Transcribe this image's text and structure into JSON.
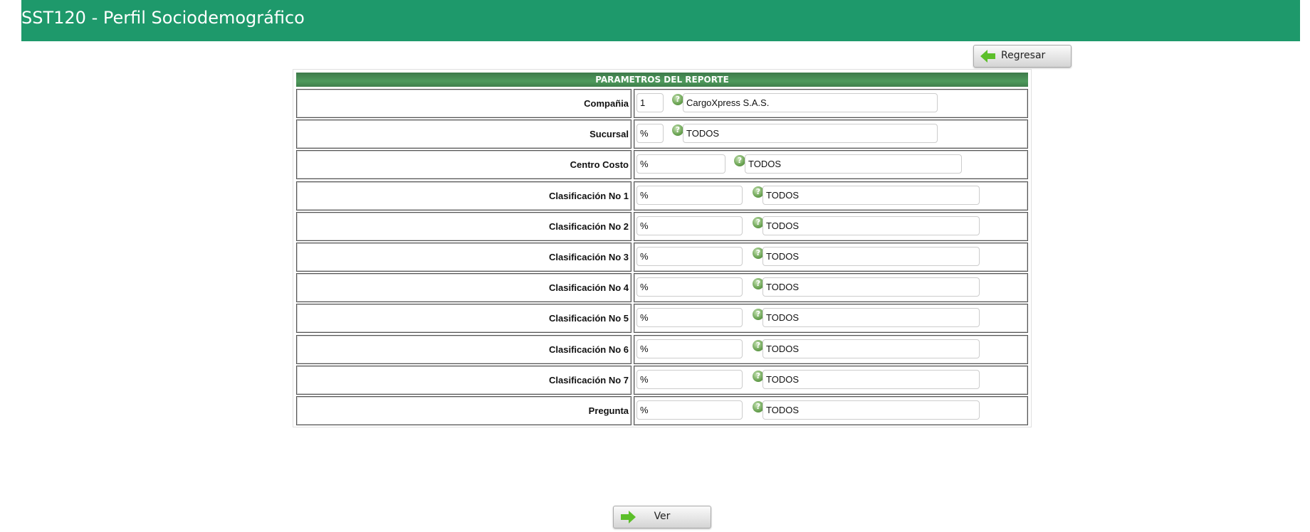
{
  "header": {
    "title": "SST120 - Perfil Sociodemográfico",
    "color": "#1e996b"
  },
  "buttons": {
    "back_label": "Regresar",
    "view_label": "Ver",
    "back_icon": "arrow-left-icon",
    "view_icon": "arrow-right-icon"
  },
  "panel": {
    "title": "PARAMETROS DEL REPORTE",
    "rows": [
      {
        "label": "Compañia",
        "code": "1",
        "description": "CargoXpress S.A.S.",
        "layout": "short"
      },
      {
        "label": "Sucursal",
        "code": "%",
        "description": "TODOS",
        "layout": "short"
      },
      {
        "label": "Centro Costo",
        "code": "%",
        "description": "TODOS",
        "layout": "medium"
      },
      {
        "label": "Clasificación No 1",
        "code": "%",
        "description": "TODOS",
        "layout": "long"
      },
      {
        "label": "Clasificación No 2",
        "code": "%",
        "description": "TODOS",
        "layout": "long"
      },
      {
        "label": "Clasificación No 3",
        "code": "%",
        "description": "TODOS",
        "layout": "long"
      },
      {
        "label": "Clasificación No 4",
        "code": "%",
        "description": "TODOS",
        "layout": "long"
      },
      {
        "label": "Clasificación No 5",
        "code": "%",
        "description": "TODOS",
        "layout": "long"
      },
      {
        "label": "Clasificación No 6",
        "code": "%",
        "description": "TODOS",
        "layout": "long"
      },
      {
        "label": "Clasificación No 7",
        "code": "%",
        "description": "TODOS",
        "layout": "long"
      },
      {
        "label": "Pregunta",
        "code": "%",
        "description": "TODOS",
        "layout": "long"
      }
    ]
  }
}
